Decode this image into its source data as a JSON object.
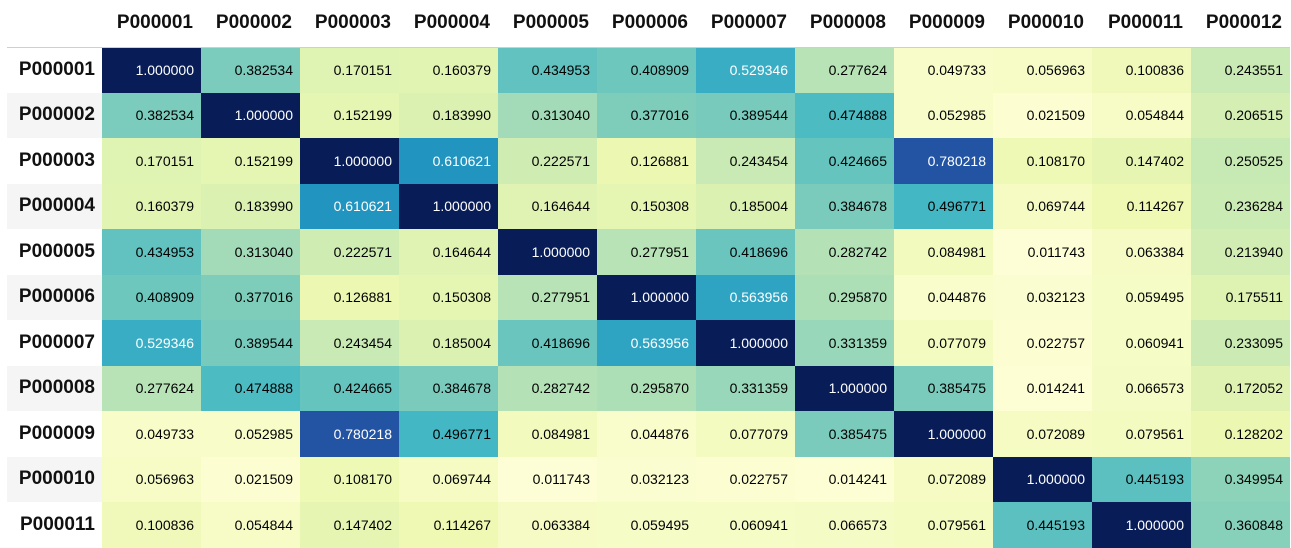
{
  "colors": {
    "scale": [
      "#ffffd9",
      "#edf8b1",
      "#c7e9b4",
      "#7fcdbb",
      "#41b6c4",
      "#1d91c0",
      "#225ea8",
      "#253494",
      "#081d58"
    ],
    "text_dark": "#000000",
    "text_light": "#ffffff"
  },
  "chart_data": {
    "type": "heatmap",
    "title": "",
    "columns": [
      "P000001",
      "P000002",
      "P000003",
      "P000004",
      "P000005",
      "P000006",
      "P000007",
      "P000008",
      "P000009",
      "P000010",
      "P000011",
      "P000012"
    ],
    "rows": [
      "P000001",
      "P000002",
      "P000003",
      "P000004",
      "P000005",
      "P000006",
      "P000007",
      "P000008",
      "P000009",
      "P000010",
      "P000011"
    ],
    "values": [
      [
        "1.000000",
        "0.382534",
        "0.170151",
        "0.160379",
        "0.434953",
        "0.408909",
        "0.529346",
        "0.277624",
        "0.049733",
        "0.056963",
        "0.100836",
        "0.243551"
      ],
      [
        "0.382534",
        "1.000000",
        "0.152199",
        "0.183990",
        "0.313040",
        "0.377016",
        "0.389544",
        "0.474888",
        "0.052985",
        "0.021509",
        "0.054844",
        "0.206515"
      ],
      [
        "0.170151",
        "0.152199",
        "1.000000",
        "0.610621",
        "0.222571",
        "0.126881",
        "0.243454",
        "0.424665",
        "0.780218",
        "0.108170",
        "0.147402",
        "0.250525"
      ],
      [
        "0.160379",
        "0.183990",
        "0.610621",
        "1.000000",
        "0.164644",
        "0.150308",
        "0.185004",
        "0.384678",
        "0.496771",
        "0.069744",
        "0.114267",
        "0.236284"
      ],
      [
        "0.434953",
        "0.313040",
        "0.222571",
        "0.164644",
        "1.000000",
        "0.277951",
        "0.418696",
        "0.282742",
        "0.084981",
        "0.011743",
        "0.063384",
        "0.213940"
      ],
      [
        "0.408909",
        "0.377016",
        "0.126881",
        "0.150308",
        "0.277951",
        "1.000000",
        "0.563956",
        "0.295870",
        "0.044876",
        "0.032123",
        "0.059495",
        "0.175511"
      ],
      [
        "0.529346",
        "0.389544",
        "0.243454",
        "0.185004",
        "0.418696",
        "0.563956",
        "1.000000",
        "0.331359",
        "0.077079",
        "0.022757",
        "0.060941",
        "0.233095"
      ],
      [
        "0.277624",
        "0.474888",
        "0.424665",
        "0.384678",
        "0.282742",
        "0.295870",
        "0.331359",
        "1.000000",
        "0.385475",
        "0.014241",
        "0.066573",
        "0.172052"
      ],
      [
        "0.049733",
        "0.052985",
        "0.780218",
        "0.496771",
        "0.084981",
        "0.044876",
        "0.077079",
        "0.385475",
        "1.000000",
        "0.072089",
        "0.079561",
        "0.128202"
      ],
      [
        "0.056963",
        "0.021509",
        "0.108170",
        "0.069744",
        "0.011743",
        "0.032123",
        "0.022757",
        "0.014241",
        "0.072089",
        "1.000000",
        "0.445193",
        "0.349954"
      ],
      [
        "0.100836",
        "0.054844",
        "0.147402",
        "0.114267",
        "0.063384",
        "0.059495",
        "0.060941",
        "0.066573",
        "0.079561",
        "0.445193",
        "1.000000",
        "0.360848"
      ]
    ],
    "color_range": [
      0,
      1
    ],
    "highlighted_row": "P000003"
  }
}
